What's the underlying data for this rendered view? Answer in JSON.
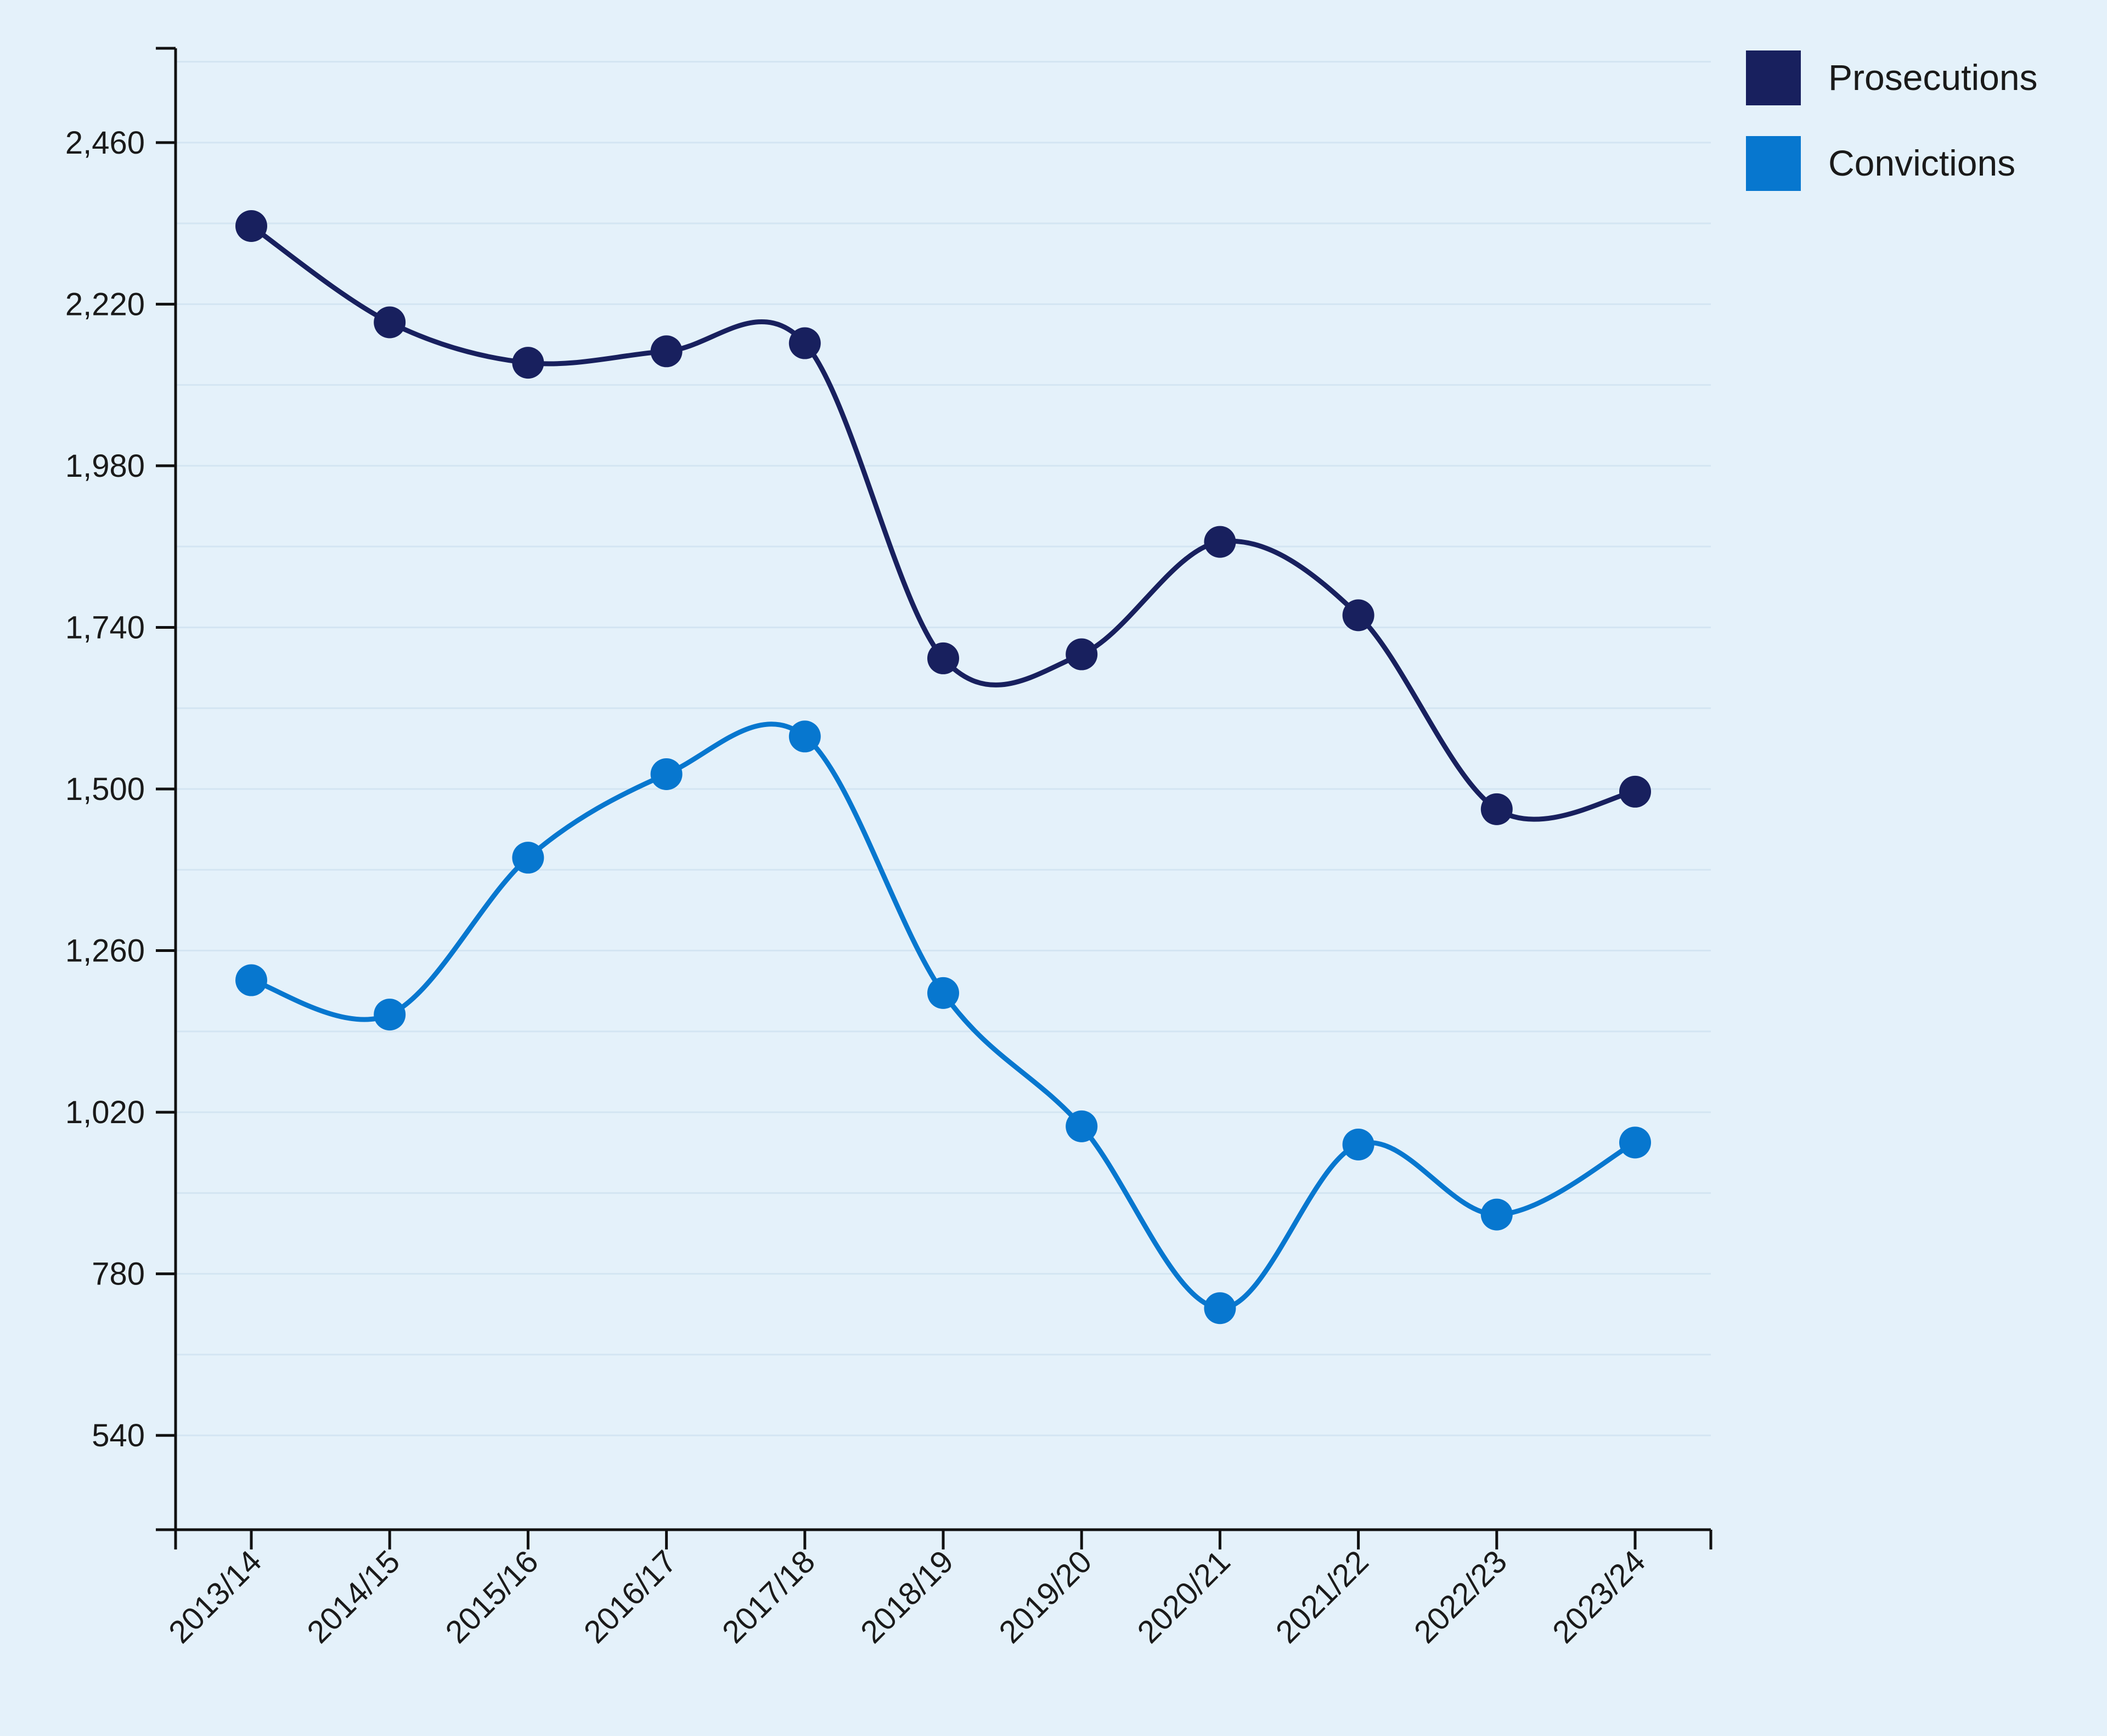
{
  "chart_data": {
    "type": "line",
    "title": "",
    "xlabel": "",
    "ylabel": "",
    "categories": [
      "2013/14",
      "2014/15",
      "2015/16",
      "2016/17",
      "2017/18",
      "2018/19",
      "2019/20",
      "2020/21",
      "2021/22",
      "2022/23",
      "2023/24"
    ],
    "ylim": [
      400,
      2600
    ],
    "yticks": [
      540,
      780,
      1020,
      1260,
      1500,
      1740,
      1980,
      2220,
      2460
    ],
    "ytick_labels": [
      "540",
      "780",
      "1,020",
      "1,260",
      "1,500",
      "1,740",
      "1,980",
      "2,220",
      "2,460"
    ],
    "grid": "horizontal, faint",
    "legend_position": "top-right",
    "series": [
      {
        "name": "Prosecutions",
        "color": "#18205e",
        "values": [
          2336,
          2193,
          2133,
          2150,
          2162,
          1694,
          1700,
          1867,
          1758,
          1470,
          1496
        ]
      },
      {
        "name": "Convictions",
        "color": "#0777cf",
        "values": [
          1216,
          1165,
          1398,
          1522,
          1578,
          1197,
          999,
          729,
          972,
          868,
          975
        ]
      }
    ]
  }
}
